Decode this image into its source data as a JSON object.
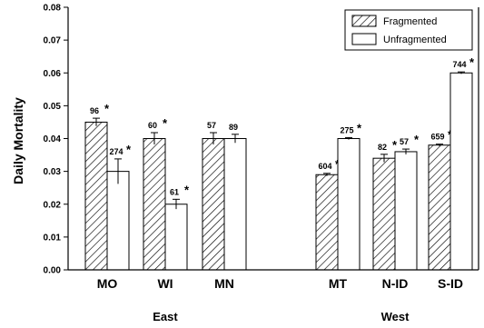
{
  "chart_data": {
    "type": "bar",
    "ylabel": "Daily Mortality",
    "ylim": [
      0,
      0.08
    ],
    "yticks": [
      "0.00",
      "0.01",
      "0.02",
      "0.03",
      "0.04",
      "0.05",
      "0.06",
      "0.07",
      "0.08"
    ],
    "categories": [
      "MO",
      "WI",
      "MN",
      "MT",
      "N-ID",
      "S-ID"
    ],
    "groups": [
      {
        "label": "East",
        "categories": [
          "MO",
          "WI",
          "MN"
        ]
      },
      {
        "label": "West",
        "categories": [
          "MT",
          "N-ID",
          "S-ID"
        ]
      }
    ],
    "legend_position": "top-right",
    "grid": false,
    "series": [
      {
        "name": "Fragmented",
        "pattern": "hatched",
        "values": [
          0.045,
          0.04,
          0.04,
          0.029,
          0.034,
          0.038
        ],
        "errors": [
          0.0012,
          0.0018,
          0.0018,
          0.0004,
          0.0012,
          0.0003
        ],
        "labels": [
          "96",
          "60",
          "57",
          "604",
          "82",
          "659"
        ],
        "significant": [
          true,
          true,
          false,
          true,
          true,
          true
        ]
      },
      {
        "name": "Unfragmented",
        "pattern": "open",
        "values": [
          0.03,
          0.02,
          0.04,
          0.04,
          0.036,
          0.06
        ],
        "errors": [
          0.0038,
          0.0015,
          0.0013,
          0.0003,
          0.0008,
          0.0003
        ],
        "labels": [
          "274",
          "61",
          "89",
          "275",
          "57",
          "744"
        ],
        "significant": [
          true,
          true,
          false,
          true,
          true,
          true
        ]
      }
    ],
    "significance_marker": "*",
    "colors": {
      "fill_open": "#ffffff",
      "stroke": "#000000",
      "hatch": "#000000"
    }
  }
}
